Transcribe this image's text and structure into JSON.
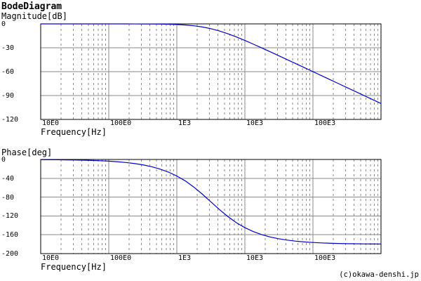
{
  "page": {
    "title": "BodeDiagram",
    "footer": "(c)okawa-denshi.jp",
    "colors": {
      "curve": "#0000cc",
      "grid_major": "#8a8a8a",
      "grid_minor": "#8a8a8a",
      "border": "#000000",
      "background": "#ffffff",
      "text": "#000000"
    }
  },
  "chart_data": [
    {
      "type": "line",
      "title": "Magnitude[dB]",
      "ylabel": "Magnitude[dB]",
      "xlabel": "Frequency[Hz]",
      "xscale": "log",
      "grid": true,
      "legend": "none",
      "xlim": [
        10,
        1000000
      ],
      "ylim": [
        -120,
        0
      ],
      "xtick_labels": [
        "10E0",
        "100E0",
        "1E3",
        "10E3",
        "100E3"
      ],
      "xtick_values": [
        10,
        100,
        1000,
        10000,
        100000
      ],
      "ytick_labels": [
        "0",
        "-30",
        "-60",
        "-90",
        "-120"
      ],
      "ytick_values": [
        0,
        -30,
        -60,
        -90,
        -120
      ],
      "series": [
        {
          "name": "magnitude",
          "x": [
            10,
            13.3,
            17.8,
            23.7,
            31.6,
            42.2,
            56.2,
            75,
            100,
            133,
            178,
            237,
            316,
            422,
            562,
            750,
            1000,
            1334,
            1778,
            2371,
            3162,
            4217,
            5623,
            7499,
            10000,
            13335,
            17783,
            23714,
            31623,
            42170,
            56234,
            74989,
            100000,
            133352,
            177828,
            237137,
            316228,
            421697,
            562341,
            749894,
            1000000
          ],
          "y": [
            0,
            0,
            0,
            0,
            0,
            0,
            0,
            0,
            -0.01,
            -0.02,
            -0.03,
            -0.05,
            -0.09,
            -0.15,
            -0.27,
            -0.47,
            -0.83,
            -1.43,
            -2.39,
            -3.88,
            -6.02,
            -8.88,
            -12.39,
            -16.42,
            -20.83,
            -25.47,
            -30.27,
            -35.15,
            -40.09,
            -45.05,
            -50.03,
            -55.01,
            -60.01,
            -65,
            -70,
            -75,
            -80,
            -85,
            -90,
            -95,
            -100
          ]
        }
      ]
    },
    {
      "type": "line",
      "title": "Phase[deg]",
      "ylabel": "Phase[deg]",
      "xlabel": "Frequency[Hz]",
      "xscale": "log",
      "grid": true,
      "legend": "none",
      "xlim": [
        10,
        1000000
      ],
      "ylim": [
        -200,
        0
      ],
      "xtick_labels": [
        "10E0",
        "100E0",
        "1E3",
        "10E3",
        "100E3"
      ],
      "xtick_values": [
        10,
        100,
        1000,
        10000,
        100000
      ],
      "ytick_labels": [
        "0",
        "-40",
        "-80",
        "-120",
        "-160",
        "-200"
      ],
      "ytick_values": [
        0,
        -40,
        -80,
        -120,
        -160,
        -200
      ],
      "series": [
        {
          "name": "phase",
          "x": [
            10,
            13.3,
            17.8,
            23.7,
            31.6,
            42.2,
            56.2,
            75,
            100,
            133,
            178,
            237,
            316,
            422,
            562,
            750,
            1000,
            1334,
            1778,
            2371,
            3162,
            4217,
            5623,
            7499,
            10000,
            13335,
            17783,
            23714,
            31623,
            42170,
            56234,
            74989,
            100000,
            133352,
            177828,
            237137,
            316228,
            421697,
            562341,
            749894,
            1000000
          ],
          "y": [
            -0.4,
            -0.5,
            -0.6,
            -0.9,
            -1.1,
            -1.5,
            -2,
            -2.7,
            -3.6,
            -4.8,
            -6.4,
            -8.6,
            -11.4,
            -15.2,
            -20.2,
            -26.7,
            -35.1,
            -45.6,
            -58.7,
            -73.7,
            -90,
            -106.3,
            -121.3,
            -134.3,
            -144.9,
            -153.3,
            -159.8,
            -164.8,
            -168.6,
            -171.4,
            -173.6,
            -175.2,
            -176.4,
            -177.3,
            -178,
            -178.5,
            -178.9,
            -179.1,
            -179.4,
            -179.5,
            -179.6
          ]
        }
      ]
    }
  ]
}
